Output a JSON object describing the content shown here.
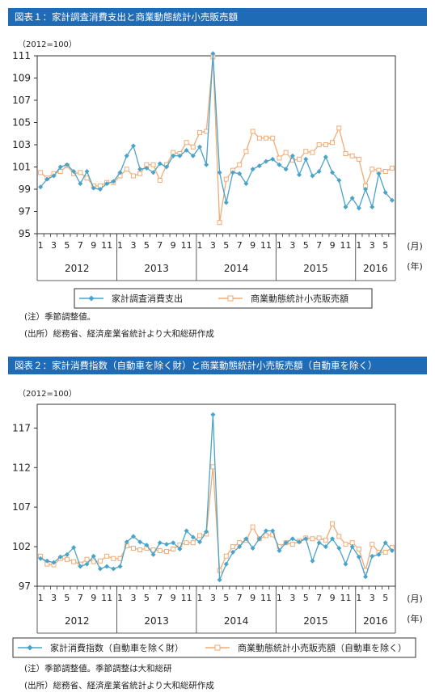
{
  "charts": [
    {
      "title": "図表１：家計調査消費支出と商業動態統計小売販売額",
      "unit": "（2012=100）",
      "month_unit": "(月)",
      "year_unit": "(年)",
      "note1": "(注）季節調整値。",
      "note2": "(出所）総務省、経済産業省統計より大和総研作成"
    },
    {
      "title": "図表２：家計消費指数（自動車を除く財）と商業動態統計小売販売額（自動車を除く）",
      "unit": "（2012=100）",
      "month_unit": "(月)",
      "year_unit": "(年)",
      "note1": "(注）季節調整値。季節調整は大和総研",
      "note2": "(出所）総務省、経済産業省統計より大和総研作成"
    }
  ],
  "chart_data": [
    {
      "type": "line",
      "title": "図表１：家計調査消費支出と商業動態統計小売販売額",
      "ylabel": "（2012=100）",
      "ylim": [
        95,
        111
      ],
      "yticks": [
        95,
        97,
        99,
        101,
        103,
        105,
        107,
        109,
        111
      ],
      "month_ticks": [
        "1",
        "3",
        "5",
        "7",
        "9",
        "11",
        "1",
        "3",
        "5",
        "7",
        "9",
        "11",
        "1",
        "3",
        "5",
        "7",
        "9",
        "11",
        "1",
        "3",
        "5",
        "7",
        "9",
        "11",
        "1",
        "3",
        "5"
      ],
      "years": [
        "2012",
        "2013",
        "2014",
        "2015",
        "2016"
      ],
      "series": [
        {
          "name": "家計調査消費支出",
          "color": "#4aa3c8",
          "marker": "diamond",
          "values": [
            99.2,
            99.9,
            100.2,
            101.0,
            101.2,
            100.6,
            99.5,
            100.6,
            99.1,
            99.0,
            99.5,
            99.7,
            100.5,
            102.0,
            102.9,
            100.8,
            100.9,
            100.5,
            101.3,
            101.0,
            102.0,
            102.0,
            102.5,
            102.0,
            102.8,
            101.2,
            111.2,
            100.5,
            97.8,
            100.5,
            100.4,
            99.5,
            100.8,
            101.1,
            101.5,
            101.7,
            101.2,
            100.8,
            102.0,
            100.3,
            101.7,
            100.2,
            100.6,
            101.9,
            100.5,
            99.8,
            97.4,
            98.2,
            97.3,
            99.0,
            97.4,
            100.4,
            98.7,
            98.0
          ]
        },
        {
          "name": "商業動態統計小売販売額",
          "color": "#f0ab75",
          "marker": "square",
          "values": [
            100.5,
            100.0,
            100.4,
            100.6,
            101.1,
            100.4,
            100.5,
            100.0,
            99.3,
            99.3,
            99.6,
            99.6,
            100.2,
            100.8,
            100.2,
            100.4,
            101.2,
            101.2,
            99.8,
            101.2,
            102.3,
            102.2,
            103.2,
            102.8,
            104.1,
            104.2,
            110.9,
            96.0,
            99.9,
            100.7,
            101.2,
            102.4,
            104.2,
            103.6,
            103.6,
            103.6,
            101.8,
            102.3,
            101.6,
            101.7,
            102.4,
            102.3,
            103.0,
            103.0,
            103.2,
            104.5,
            102.2,
            102.0,
            101.7,
            99.3,
            100.8,
            100.7,
            100.6,
            100.9
          ]
        }
      ]
    },
    {
      "type": "line",
      "title": "図表２：家計消費指数（自動車を除く財）と商業動態統計小売販売額（自動車を除く）",
      "ylabel": "（2012=100）",
      "ylim": [
        97,
        120
      ],
      "yticks": [
        97,
        102,
        107,
        112,
        117
      ],
      "month_ticks": [
        "1",
        "3",
        "5",
        "7",
        "9",
        "11",
        "1",
        "3",
        "5",
        "7",
        "9",
        "11",
        "1",
        "3",
        "5",
        "7",
        "9",
        "11",
        "1",
        "3",
        "5",
        "7",
        "9",
        "11",
        "1",
        "3",
        "5"
      ],
      "years": [
        "2012",
        "2013",
        "2014",
        "2015",
        "2016"
      ],
      "series": [
        {
          "name": "家計消費指数（自動車を除く財）",
          "color": "#4aa3c8",
          "marker": "diamond",
          "values": [
            100.5,
            100.2,
            100.0,
            100.7,
            101.0,
            101.9,
            99.5,
            99.8,
            100.8,
            99.2,
            99.5,
            99.2,
            99.5,
            102.6,
            103.3,
            102.6,
            102.2,
            101.0,
            102.5,
            102.3,
            102.5,
            101.7,
            104.0,
            103.2,
            102.6,
            103.9,
            118.7,
            97.8,
            99.8,
            101.3,
            102.0,
            103.0,
            101.8,
            103.0,
            104.0,
            104.0,
            101.5,
            102.5,
            103.0,
            102.6,
            103.0,
            100.2,
            102.5,
            102.0,
            103.0,
            101.8,
            99.8,
            102.0,
            100.7,
            98.2,
            100.8,
            101.0,
            102.5,
            101.5
          ]
        },
        {
          "name": "商業動態統計小売販売額（自動車を除く）",
          "color": "#f0ab75",
          "marker": "square",
          "values": [
            100.8,
            99.8,
            99.7,
            100.5,
            100.4,
            100.1,
            99.8,
            100.4,
            100.1,
            100.2,
            100.8,
            100.5,
            100.5,
            102.1,
            101.8,
            101.6,
            101.8,
            101.6,
            101.5,
            101.4,
            101.7,
            102.2,
            102.5,
            102.5,
            103.4,
            103.6,
            112.1,
            99.0,
            100.8,
            102.0,
            102.5,
            102.8,
            104.5,
            103.0,
            103.4,
            103.5,
            102.0,
            102.5,
            102.3,
            102.7,
            103.1,
            103.0,
            103.1,
            102.8,
            104.9,
            103.3,
            102.3,
            102.5,
            101.7,
            99.0,
            102.3,
            101.3,
            101.3,
            101.9
          ]
        }
      ]
    }
  ]
}
